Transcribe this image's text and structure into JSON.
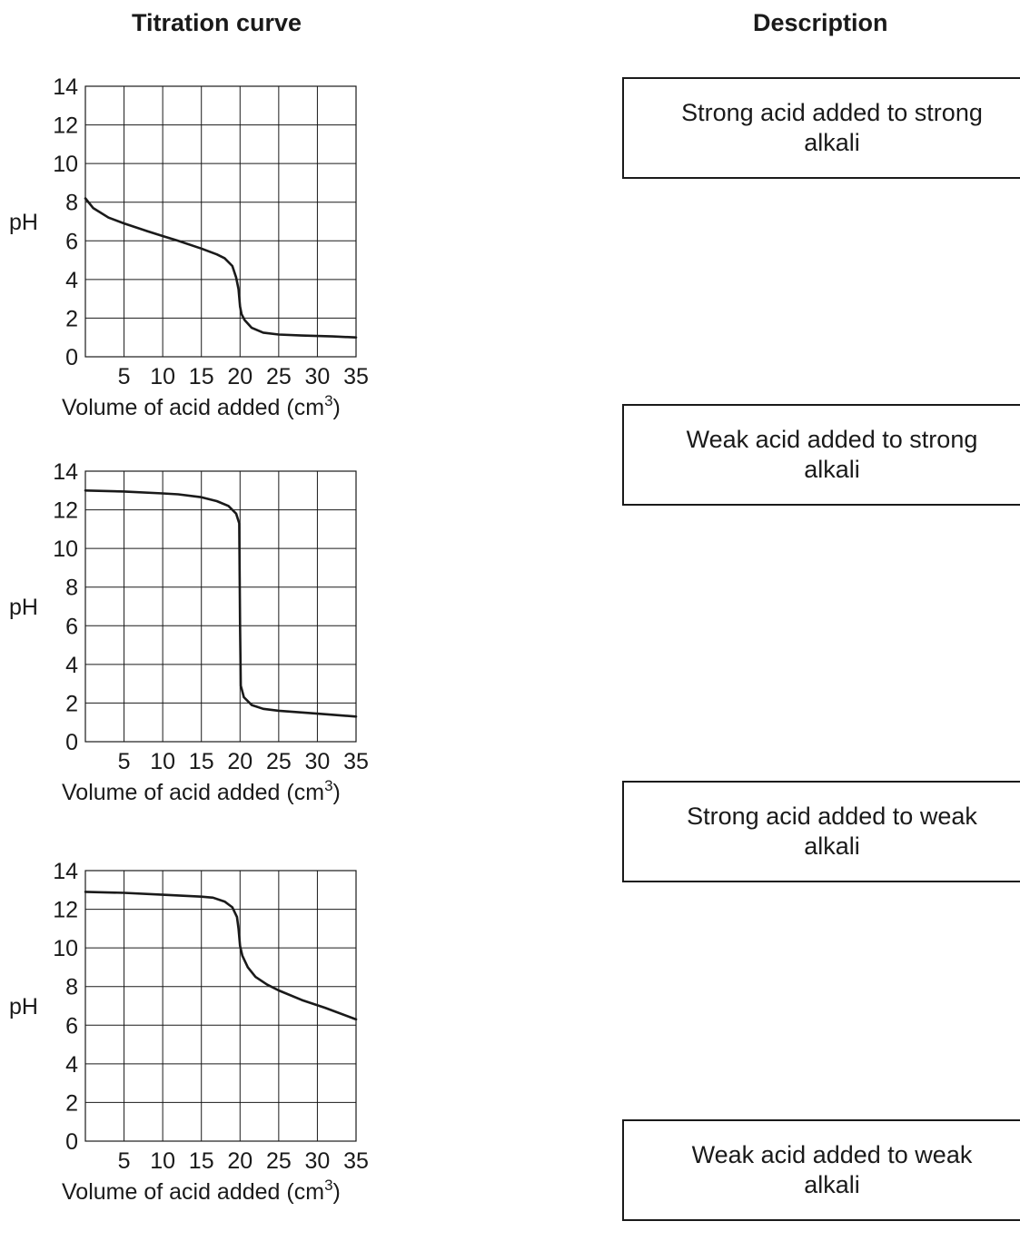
{
  "headings": {
    "curve": "Titration curve",
    "description": "Description"
  },
  "descriptions": [
    {
      "line1": "Strong acid added to strong",
      "line2": "alkali"
    },
    {
      "line1": "Weak acid added to strong",
      "line2": "alkali"
    },
    {
      "line1": "Strong acid added to weak",
      "line2": "alkali"
    },
    {
      "line1": "Weak acid added to weak",
      "line2": "alkali"
    }
  ],
  "axis_text": {
    "ylabel": "pH",
    "xlabel": "Volume of acid added (cm",
    "xlabel_superscript": "3",
    "xlabel_close": ")"
  },
  "colors": {
    "line": "#1a1a1a",
    "grid": "#1a1a1a"
  },
  "chart_data": [
    {
      "type": "line",
      "ylabel": "pH",
      "xlabel": "Volume of acid added (cm3)",
      "xlim": [
        0,
        35
      ],
      "ylim": [
        0,
        14
      ],
      "xticks": [
        5,
        10,
        15,
        20,
        25,
        30,
        35
      ],
      "yticks": [
        0,
        2,
        4,
        6,
        8,
        10,
        12,
        14
      ],
      "grid": true,
      "series": [
        {
          "x": [
            0,
            1,
            3,
            5,
            8,
            10,
            12,
            15,
            17,
            18,
            19,
            19.5,
            19.8,
            20,
            20.2,
            20.6,
            21.5,
            23,
            25,
            28,
            32,
            35
          ],
          "y": [
            8.2,
            7.7,
            7.2,
            6.9,
            6.5,
            6.25,
            6.0,
            5.6,
            5.3,
            5.1,
            4.7,
            4.1,
            3.5,
            2.6,
            2.2,
            1.9,
            1.5,
            1.25,
            1.15,
            1.1,
            1.05,
            1.0
          ]
        }
      ]
    },
    {
      "type": "line",
      "ylabel": "pH",
      "xlabel": "Volume of acid added (cm3)",
      "xlim": [
        0,
        35
      ],
      "ylim": [
        0,
        14
      ],
      "xticks": [
        5,
        10,
        15,
        20,
        25,
        30,
        35
      ],
      "yticks": [
        0,
        2,
        4,
        6,
        8,
        10,
        12,
        14
      ],
      "grid": true,
      "series": [
        {
          "x": [
            0,
            5,
            10,
            12,
            15,
            17,
            18.5,
            19.5,
            19.9,
            20,
            20.1,
            20.5,
            21.5,
            23,
            25,
            30,
            35
          ],
          "y": [
            13.0,
            12.95,
            12.85,
            12.8,
            12.65,
            12.45,
            12.2,
            11.8,
            11.3,
            6.0,
            2.9,
            2.3,
            1.9,
            1.7,
            1.6,
            1.45,
            1.3
          ]
        }
      ]
    },
    {
      "type": "line",
      "ylabel": "pH",
      "xlabel": "Volume of acid added (cm3)",
      "xlim": [
        0,
        35
      ],
      "ylim": [
        0,
        14
      ],
      "xticks": [
        5,
        10,
        15,
        20,
        25,
        30,
        35
      ],
      "yticks": [
        0,
        2,
        4,
        6,
        8,
        10,
        12,
        14
      ],
      "grid": true,
      "series": [
        {
          "x": [
            0,
            5,
            10,
            15,
            16.5,
            18,
            19,
            19.6,
            19.8,
            20,
            20.3,
            21,
            22,
            23.5,
            25,
            28,
            31,
            35
          ],
          "y": [
            12.9,
            12.85,
            12.75,
            12.65,
            12.6,
            12.4,
            12.1,
            11.6,
            11.0,
            10.1,
            9.6,
            9.0,
            8.5,
            8.1,
            7.8,
            7.3,
            6.9,
            6.3
          ]
        }
      ]
    }
  ]
}
